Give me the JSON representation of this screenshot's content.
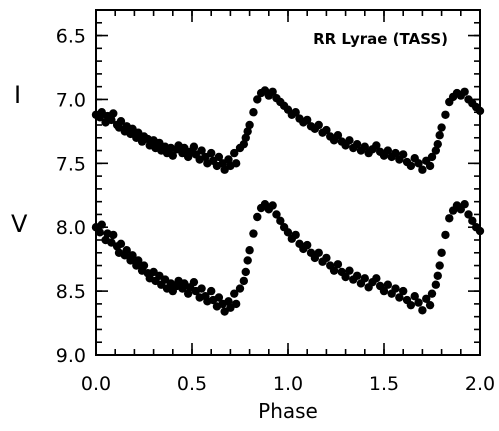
{
  "chart_data": {
    "type": "scatter",
    "title": "",
    "annotation": "RR Lyrae (TASS)",
    "xlabel": "Phase",
    "ylabel": "",
    "xlim": [
      0.0,
      2.0
    ],
    "ylim": [
      9.0,
      6.3
    ],
    "y_inverted": true,
    "x_ticks": [
      "0.0",
      "0.5",
      "1.0",
      "1.5",
      "2.0"
    ],
    "x_tick_values": [
      0.0,
      0.5,
      1.0,
      1.5,
      2.0
    ],
    "y_ticks": [
      "6.5",
      "7.0",
      "7.5",
      "8.0",
      "8.5",
      "9.0"
    ],
    "y_tick_values": [
      6.5,
      7.0,
      7.5,
      8.0,
      8.5,
      9.0
    ],
    "band_labels": [
      "I",
      "V"
    ],
    "marker_color": "#000000",
    "series": [
      {
        "name": "I",
        "points": [
          [
            0.0,
            7.12
          ],
          [
            0.02,
            7.14
          ],
          [
            0.03,
            7.1
          ],
          [
            0.05,
            7.18
          ],
          [
            0.06,
            7.13
          ],
          [
            0.08,
            7.16
          ],
          [
            0.09,
            7.11
          ],
          [
            0.11,
            7.2
          ],
          [
            0.12,
            7.22
          ],
          [
            0.13,
            7.17
          ],
          [
            0.15,
            7.25
          ],
          [
            0.16,
            7.21
          ],
          [
            0.18,
            7.27
          ],
          [
            0.19,
            7.23
          ],
          [
            0.21,
            7.3
          ],
          [
            0.22,
            7.26
          ],
          [
            0.24,
            7.33
          ],
          [
            0.25,
            7.29
          ],
          [
            0.27,
            7.31
          ],
          [
            0.28,
            7.36
          ],
          [
            0.3,
            7.32
          ],
          [
            0.31,
            7.38
          ],
          [
            0.33,
            7.34
          ],
          [
            0.34,
            7.4
          ],
          [
            0.36,
            7.37
          ],
          [
            0.37,
            7.42
          ],
          [
            0.39,
            7.38
          ],
          [
            0.4,
            7.44
          ],
          [
            0.42,
            7.39
          ],
          [
            0.43,
            7.36
          ],
          [
            0.45,
            7.42
          ],
          [
            0.46,
            7.38
          ],
          [
            0.48,
            7.45
          ],
          [
            0.49,
            7.41
          ],
          [
            0.51,
            7.37
          ],
          [
            0.52,
            7.43
          ],
          [
            0.54,
            7.47
          ],
          [
            0.55,
            7.4
          ],
          [
            0.57,
            7.45
          ],
          [
            0.58,
            7.5
          ],
          [
            0.6,
            7.42
          ],
          [
            0.61,
            7.48
          ],
          [
            0.63,
            7.52
          ],
          [
            0.64,
            7.45
          ],
          [
            0.66,
            7.5
          ],
          [
            0.67,
            7.55
          ],
          [
            0.69,
            7.47
          ],
          [
            0.7,
            7.52
          ],
          [
            0.72,
            7.42
          ],
          [
            0.73,
            7.5
          ],
          [
            0.75,
            7.38
          ],
          [
            0.77,
            7.35
          ],
          [
            0.78,
            7.3
          ],
          [
            0.79,
            7.25
          ],
          [
            0.8,
            7.2
          ],
          [
            0.82,
            7.1
          ],
          [
            0.84,
            7.0
          ],
          [
            0.86,
            6.95
          ],
          [
            0.88,
            6.93
          ],
          [
            0.9,
            6.97
          ],
          [
            0.92,
            6.94
          ],
          [
            0.94,
            6.99
          ],
          [
            0.96,
            7.02
          ],
          [
            0.98,
            7.05
          ],
          [
            1.0,
            7.08
          ],
          [
            1.02,
            7.12
          ],
          [
            1.04,
            7.1
          ],
          [
            1.06,
            7.15
          ],
          [
            1.08,
            7.18
          ],
          [
            1.1,
            7.16
          ],
          [
            1.12,
            7.21
          ],
          [
            1.14,
            7.23
          ],
          [
            1.16,
            7.2
          ],
          [
            1.18,
            7.26
          ],
          [
            1.2,
            7.24
          ],
          [
            1.22,
            7.29
          ],
          [
            1.24,
            7.32
          ],
          [
            1.26,
            7.28
          ],
          [
            1.28,
            7.33
          ],
          [
            1.3,
            7.36
          ],
          [
            1.32,
            7.32
          ],
          [
            1.34,
            7.38
          ],
          [
            1.36,
            7.35
          ],
          [
            1.38,
            7.4
          ],
          [
            1.4,
            7.37
          ],
          [
            1.42,
            7.42
          ],
          [
            1.44,
            7.39
          ],
          [
            1.46,
            7.36
          ],
          [
            1.48,
            7.41
          ],
          [
            1.5,
            7.44
          ],
          [
            1.52,
            7.4
          ],
          [
            1.54,
            7.45
          ],
          [
            1.56,
            7.42
          ],
          [
            1.58,
            7.47
          ],
          [
            1.6,
            7.43
          ],
          [
            1.62,
            7.49
          ],
          [
            1.64,
            7.52
          ],
          [
            1.66,
            7.46
          ],
          [
            1.68,
            7.5
          ],
          [
            1.7,
            7.55
          ],
          [
            1.72,
            7.48
          ],
          [
            1.74,
            7.52
          ],
          [
            1.75,
            7.45
          ],
          [
            1.77,
            7.4
          ],
          [
            1.78,
            7.35
          ],
          [
            1.79,
            7.28
          ],
          [
            1.8,
            7.22
          ],
          [
            1.82,
            7.12
          ],
          [
            1.84,
            7.02
          ],
          [
            1.86,
            6.98
          ],
          [
            1.88,
            6.95
          ],
          [
            1.9,
            6.97
          ],
          [
            1.92,
            6.94
          ],
          [
            1.94,
            7.0
          ],
          [
            1.96,
            7.03
          ],
          [
            1.98,
            7.06
          ],
          [
            2.0,
            7.09
          ]
        ]
      },
      {
        "name": "V",
        "points": [
          [
            0.0,
            8.0
          ],
          [
            0.02,
            8.04
          ],
          [
            0.03,
            7.98
          ],
          [
            0.05,
            8.1
          ],
          [
            0.06,
            8.05
          ],
          [
            0.08,
            8.12
          ],
          [
            0.09,
            8.06
          ],
          [
            0.11,
            8.15
          ],
          [
            0.12,
            8.2
          ],
          [
            0.13,
            8.13
          ],
          [
            0.15,
            8.22
          ],
          [
            0.16,
            8.18
          ],
          [
            0.18,
            8.26
          ],
          [
            0.19,
            8.22
          ],
          [
            0.21,
            8.3
          ],
          [
            0.22,
            8.26
          ],
          [
            0.24,
            8.34
          ],
          [
            0.25,
            8.3
          ],
          [
            0.27,
            8.36
          ],
          [
            0.28,
            8.4
          ],
          [
            0.3,
            8.35
          ],
          [
            0.31,
            8.42
          ],
          [
            0.33,
            8.38
          ],
          [
            0.34,
            8.45
          ],
          [
            0.36,
            8.41
          ],
          [
            0.37,
            8.48
          ],
          [
            0.39,
            8.44
          ],
          [
            0.4,
            8.5
          ],
          [
            0.42,
            8.46
          ],
          [
            0.43,
            8.42
          ],
          [
            0.45,
            8.48
          ],
          [
            0.46,
            8.44
          ],
          [
            0.48,
            8.52
          ],
          [
            0.49,
            8.47
          ],
          [
            0.51,
            8.43
          ],
          [
            0.52,
            8.5
          ],
          [
            0.54,
            8.55
          ],
          [
            0.55,
            8.48
          ],
          [
            0.57,
            8.54
          ],
          [
            0.58,
            8.58
          ],
          [
            0.6,
            8.5
          ],
          [
            0.61,
            8.57
          ],
          [
            0.63,
            8.62
          ],
          [
            0.64,
            8.55
          ],
          [
            0.66,
            8.6
          ],
          [
            0.67,
            8.66
          ],
          [
            0.69,
            8.58
          ],
          [
            0.7,
            8.63
          ],
          [
            0.72,
            8.52
          ],
          [
            0.73,
            8.6
          ],
          [
            0.75,
            8.48
          ],
          [
            0.77,
            8.42
          ],
          [
            0.78,
            8.35
          ],
          [
            0.79,
            8.26
          ],
          [
            0.8,
            8.18
          ],
          [
            0.82,
            8.05
          ],
          [
            0.84,
            7.92
          ],
          [
            0.86,
            7.85
          ],
          [
            0.88,
            7.82
          ],
          [
            0.9,
            7.86
          ],
          [
            0.92,
            7.83
          ],
          [
            0.94,
            7.9
          ],
          [
            0.96,
            7.95
          ],
          [
            0.98,
            8.0
          ],
          [
            1.0,
            8.04
          ],
          [
            1.02,
            8.09
          ],
          [
            1.04,
            8.06
          ],
          [
            1.06,
            8.13
          ],
          [
            1.08,
            8.17
          ],
          [
            1.1,
            8.14
          ],
          [
            1.12,
            8.2
          ],
          [
            1.14,
            8.24
          ],
          [
            1.16,
            8.2
          ],
          [
            1.18,
            8.27
          ],
          [
            1.2,
            8.24
          ],
          [
            1.22,
            8.3
          ],
          [
            1.24,
            8.34
          ],
          [
            1.26,
            8.29
          ],
          [
            1.28,
            8.35
          ],
          [
            1.3,
            8.39
          ],
          [
            1.32,
            8.34
          ],
          [
            1.34,
            8.41
          ],
          [
            1.36,
            8.38
          ],
          [
            1.38,
            8.44
          ],
          [
            1.4,
            8.4
          ],
          [
            1.42,
            8.47
          ],
          [
            1.44,
            8.43
          ],
          [
            1.46,
            8.4
          ],
          [
            1.48,
            8.46
          ],
          [
            1.5,
            8.5
          ],
          [
            1.52,
            8.45
          ],
          [
            1.54,
            8.52
          ],
          [
            1.56,
            8.48
          ],
          [
            1.58,
            8.55
          ],
          [
            1.6,
            8.5
          ],
          [
            1.62,
            8.57
          ],
          [
            1.64,
            8.61
          ],
          [
            1.66,
            8.54
          ],
          [
            1.68,
            8.59
          ],
          [
            1.7,
            8.65
          ],
          [
            1.72,
            8.56
          ],
          [
            1.74,
            8.61
          ],
          [
            1.75,
            8.52
          ],
          [
            1.77,
            8.45
          ],
          [
            1.78,
            8.38
          ],
          [
            1.79,
            8.3
          ],
          [
            1.8,
            8.2
          ],
          [
            1.82,
            8.06
          ],
          [
            1.84,
            7.93
          ],
          [
            1.86,
            7.87
          ],
          [
            1.88,
            7.83
          ],
          [
            1.9,
            7.86
          ],
          [
            1.92,
            7.82
          ],
          [
            1.94,
            7.9
          ],
          [
            1.96,
            7.95
          ],
          [
            1.98,
            8.0
          ],
          [
            2.0,
            8.03
          ]
        ]
      }
    ]
  }
}
